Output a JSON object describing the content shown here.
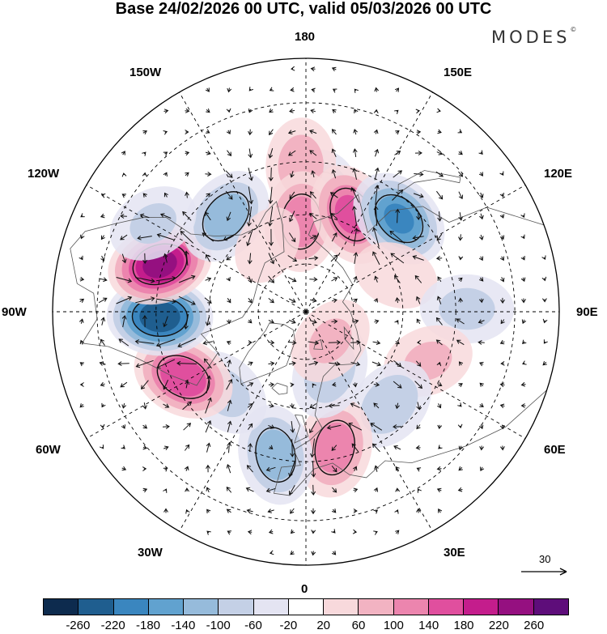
{
  "title": "Base 24/02/2026 00 UTC, valid 05/03/2026 00 UTC",
  "logo": "MODES",
  "logo_mark": "©",
  "longitude_labels": {
    "lon_180": "180",
    "lon_150e": "150E",
    "lon_120e": "120E",
    "lon_90e": "90E",
    "lon_60e": "60E",
    "lon_30e": "30E",
    "lon_0": "0",
    "lon_30w": "30W",
    "lon_60w": "60W",
    "lon_90w": "90W",
    "lon_120w": "120W",
    "lon_150w": "150W"
  },
  "reference_vector": {
    "value": "30"
  },
  "colorbar": {
    "colors": [
      "#0d2b4e",
      "#1f5e8f",
      "#3a86bf",
      "#61a2cf",
      "#96bbdb",
      "#c4d0e6",
      "#e4e4f2",
      "#ffffff",
      "#f8d9dc",
      "#f2b3c2",
      "#ec85ae",
      "#e04f9e",
      "#c41d8c",
      "#951080",
      "#5e0d7a"
    ],
    "tick_labels": [
      "-260",
      "-220",
      "-180",
      "-140",
      "-100",
      "-60",
      "-20",
      "20",
      "60",
      "100",
      "140",
      "180",
      "220",
      "260"
    ]
  },
  "map": {
    "projection": "north polar stereographic",
    "grid_color": "#000000",
    "anomaly_centers": [
      {
        "lon": 170,
        "lat": 55,
        "value": -110
      },
      {
        "lon": -178,
        "lat": 46,
        "value": 80
      },
      {
        "lon": -177,
        "lat": 62,
        "value": 120
      },
      {
        "lon": 155,
        "lat": 57,
        "value": 150
      },
      {
        "lon": 135,
        "lat": 50,
        "value": -180
      },
      {
        "lon": 112,
        "lat": 60,
        "value": 40
      },
      {
        "lon": 91,
        "lat": 42,
        "value": -70
      },
      {
        "lon": 68,
        "lat": 50,
        "value": 60
      },
      {
        "lon": 42,
        "lat": 52,
        "value": -90
      },
      {
        "lon": 12,
        "lat": 48,
        "value": 120
      },
      {
        "lon": -12,
        "lat": 46,
        "value": -120
      },
      {
        "lon": -45,
        "lat": 55,
        "value": -70
      },
      {
        "lon": -62,
        "lat": 48,
        "value": 170
      },
      {
        "lon": -88,
        "lat": 46,
        "value": -250
      },
      {
        "lon": -108,
        "lat": 44,
        "value": 230
      },
      {
        "lon": -140,
        "lat": 52,
        "value": -120
      },
      {
        "lon": -120,
        "lat": 38,
        "value": -60
      },
      {
        "lon": -150,
        "lat": 66,
        "value": 30
      },
      {
        "lon": 22,
        "lat": 70,
        "value": -90
      },
      {
        "lon": 40,
        "lat": 78,
        "value": 60
      }
    ]
  }
}
